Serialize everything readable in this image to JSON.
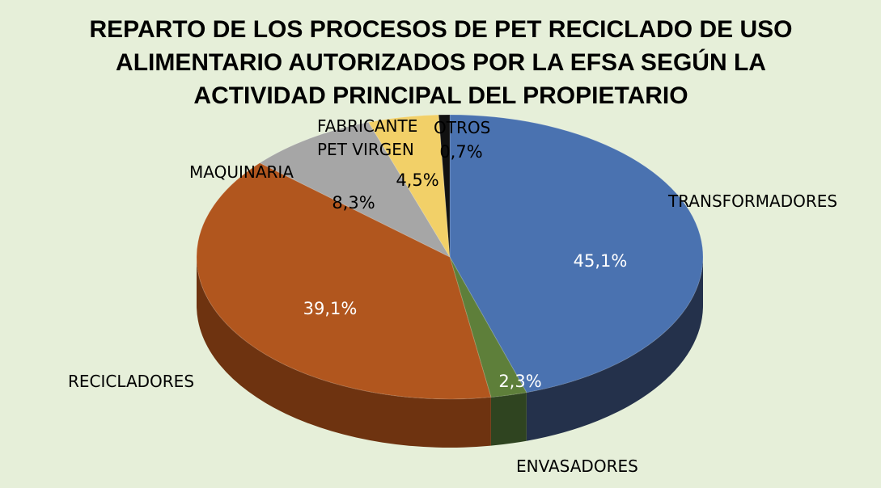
{
  "chart_data": {
    "type": "pie",
    "style": "3d",
    "title_lines": [
      "REPARTO DE LOS PROCESOS DE PET RECICLADO DE USO",
      "ALIMENTARIO AUTORIZADOS POR LA EFSA SEGÚN LA",
      "ACTIVIDAD PRINCIPAL DEL PROPIETARIO"
    ],
    "slices": [
      {
        "name": "TRANSFORMADORES",
        "value": 45.1,
        "label": "45,1%",
        "color": "#4a72b0",
        "side_color": "#24314b",
        "label_color": "#ffffff"
      },
      {
        "name": "ENVASADORES",
        "value": 2.3,
        "label": "2,3%",
        "color": "#5e7f3a",
        "side_color": "#2f4420",
        "label_color": "#ffffff"
      },
      {
        "name": "RECICLADORES",
        "value": 39.1,
        "label": "39,1%",
        "color": "#b1561e",
        "side_color": "#6e3310",
        "label_color": "#ffffff"
      },
      {
        "name": "MAQUINARIA",
        "value": 8.3,
        "label": "8,3%",
        "color": "#a6a6a6",
        "side_color": "#6e6e6e",
        "label_color": "#000000"
      },
      {
        "name_lines": [
          "FABRICANTE",
          "PET VIRGEN"
        ],
        "value": 4.5,
        "label": "4,5%",
        "color": "#f2d068",
        "side_color": "#b39638",
        "label_color": "#000000"
      },
      {
        "name": "OTROS",
        "value": 0.7,
        "label": "0,7%",
        "color": "#111111",
        "side_color": "#000000",
        "label_color": "#000000"
      }
    ],
    "legend": "none"
  }
}
